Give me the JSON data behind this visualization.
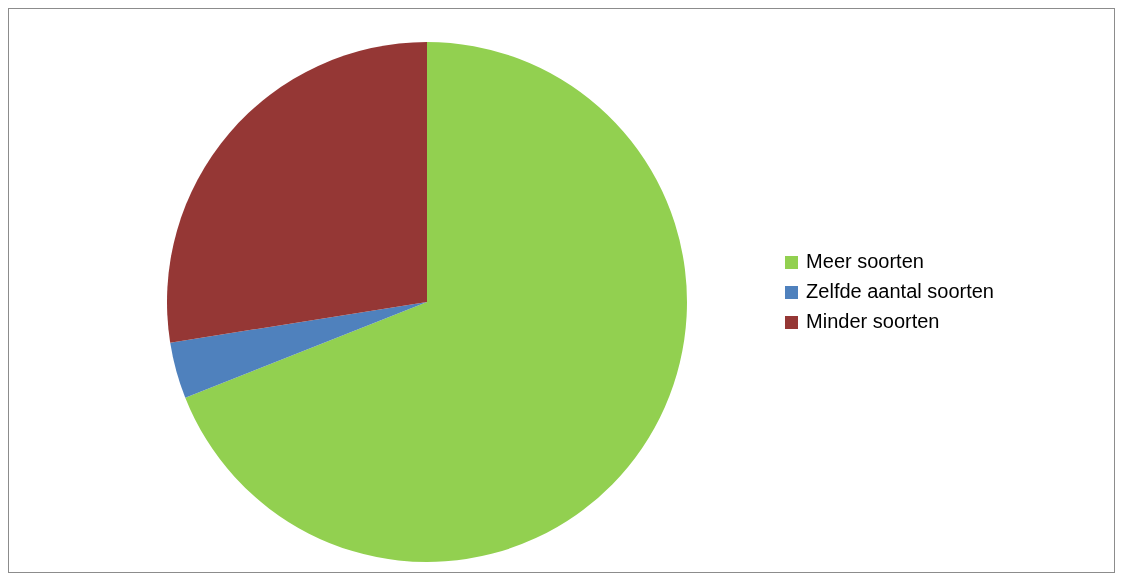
{
  "chart_data": {
    "type": "pie",
    "categories": [
      "Meer soorten",
      "Zelfde aantal soorten",
      "Minder soorten"
    ],
    "values": [
      69,
      3.5,
      27.5
    ],
    "colors": [
      "#92d050",
      "#4f81bd",
      "#953735"
    ],
    "legend": "right"
  }
}
